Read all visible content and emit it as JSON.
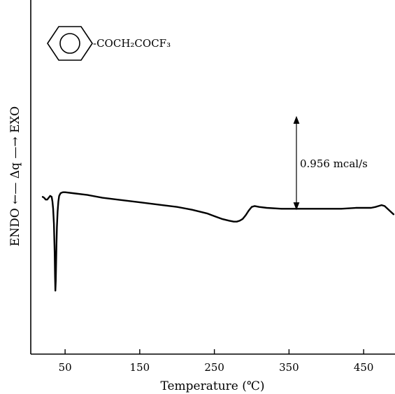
{
  "chart_data": {
    "type": "line",
    "title": "",
    "xlabel": "Temperature (℃)",
    "ylabel": "ENDO ←— Δq —→ EXO",
    "xlim": [
      4,
      492
    ],
    "ylim": [
      -1.7,
      2.15
    ],
    "ticks_x": [
      50,
      150,
      250,
      350,
      450
    ],
    "tick_labels_x": [
      "50",
      "150",
      "250",
      "350",
      "450"
    ],
    "grid": false,
    "series": [
      {
        "x": [
          20,
          22,
          24,
          26,
          28,
          30,
          32,
          33,
          34,
          35,
          36,
          36.5,
          37,
          37.5,
          38,
          38.5,
          39,
          40,
          41,
          42,
          44,
          47,
          50,
          60,
          80,
          100,
          120,
          150,
          180,
          200,
          220,
          240,
          250,
          260,
          270,
          276,
          280,
          284,
          288,
          292,
          296,
          300,
          304,
          310,
          320,
          340,
          360,
          380,
          400,
          420,
          440,
          450,
          460,
          466,
          470,
          474,
          478,
          482,
          486,
          490
        ],
        "y": [
          0.01,
          0.0,
          -0.02,
          -0.02,
          0.0,
          0.02,
          0.01,
          -0.04,
          -0.12,
          -0.28,
          -0.6,
          -0.85,
          -1.01,
          -0.9,
          -0.7,
          -0.5,
          -0.32,
          -0.15,
          -0.04,
          0.02,
          0.05,
          0.06,
          0.06,
          0.05,
          0.03,
          0.0,
          -0.02,
          -0.05,
          -0.08,
          -0.1,
          -0.13,
          -0.17,
          -0.2,
          -0.23,
          -0.25,
          -0.26,
          -0.26,
          -0.25,
          -0.23,
          -0.19,
          -0.14,
          -0.1,
          -0.09,
          -0.1,
          -0.11,
          -0.12,
          -0.12,
          -0.12,
          -0.12,
          -0.12,
          -0.11,
          -0.11,
          -0.11,
          -0.1,
          -0.09,
          -0.08,
          -0.09,
          -0.12,
          -0.15,
          -0.18
        ]
      }
    ],
    "annotations": {
      "compound": "-COCH₂COCF₃",
      "scale": "0.956 mcal/s",
      "scale_bar_height": 1.0
    }
  }
}
